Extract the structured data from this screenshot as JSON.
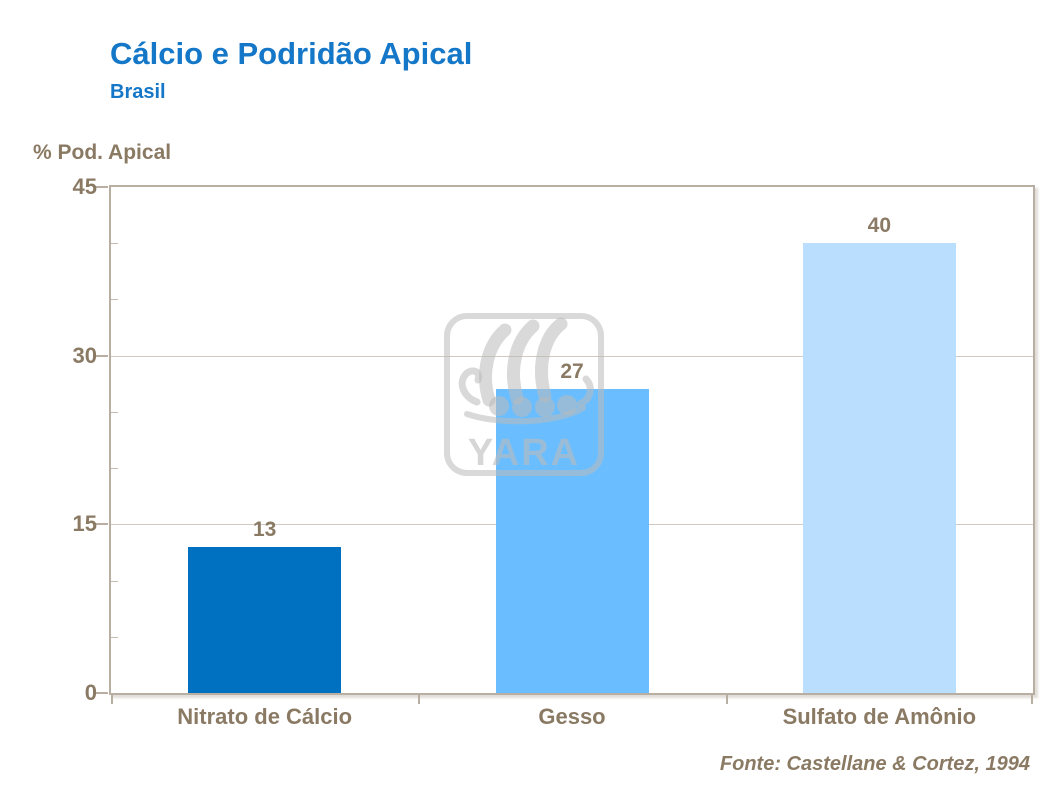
{
  "slide": {
    "title": "Cálcio e Podridão Apical",
    "subtitle": "Brasil",
    "source": "Fonte: Castellane & Cortez, 1994"
  },
  "watermark": {
    "label": "YARA"
  },
  "colors": {
    "title_blue": "#1477C8",
    "text_brown": "#8A7A64",
    "frame": "#B8AEA2",
    "gridline": "#D0CAC2",
    "minor_tick": "#C6BCAF"
  },
  "chart_data": {
    "type": "bar",
    "title": "Cálcio e Podridão Apical",
    "subtitle": "Brasil",
    "ylabel": "% Pod. Apical",
    "xlabel": "",
    "categories": [
      "Nitrato de Cálcio",
      "Gesso",
      "Sulfato de Amônio"
    ],
    "values": [
      13,
      27,
      40
    ],
    "bar_colors": [
      "#0070C0",
      "#6ABEFF",
      "#BADEFD"
    ],
    "value_label_color": "#8A7A64",
    "ylim": [
      0,
      45
    ],
    "yticks": [
      0,
      15,
      30,
      45
    ],
    "minor_tick_step": 5,
    "grid": "horizontal",
    "legend": "none",
    "source": "Fonte: Castellane & Cortez, 1994"
  }
}
